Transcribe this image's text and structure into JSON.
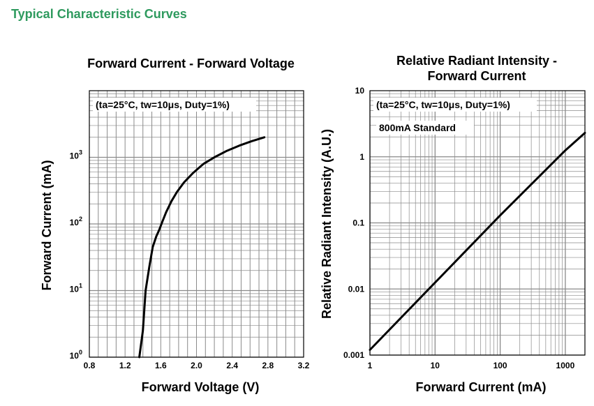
{
  "page": {
    "section_title": "Typical Characteristic Curves"
  },
  "chart_data": [
    {
      "type": "line",
      "title": "Forward Current - Forward Voltage",
      "xlabel": "Forward Voltage (V)",
      "ylabel": "Forward Current (mA)",
      "x_scale": "linear",
      "y_scale": "log",
      "xlim": [
        0.8,
        3.2
      ],
      "ylim": [
        1,
        10000
      ],
      "x_ticks": [
        "0.8",
        "1.2",
        "1.6",
        "2.0",
        "2.4",
        "2.8",
        "3.2"
      ],
      "y_ticks": [
        {
          "base": "10",
          "exp": "0"
        },
        {
          "base": "10",
          "exp": "1"
        },
        {
          "base": "10",
          "exp": "2"
        },
        {
          "base": "10",
          "exp": "3"
        }
      ],
      "grid": true,
      "annotation": "(ta=25°C, tw=10μs, Duty=1%)",
      "series": [
        {
          "x": [
            1.36,
            1.4,
            1.43,
            1.47,
            1.51,
            1.55,
            1.58,
            1.62,
            1.66,
            1.72,
            1.78,
            1.86,
            1.96,
            2.08,
            2.2,
            2.34,
            2.48,
            2.62,
            2.76
          ],
          "y": [
            1,
            2.5,
            10,
            22,
            45,
            65,
            80,
            110,
            150,
            220,
            300,
            420,
            580,
            800,
            1000,
            1250,
            1500,
            1750,
            2000
          ]
        }
      ]
    },
    {
      "type": "line",
      "title": [
        "Relative Radiant Intensity -",
        "Forward Current"
      ],
      "xlabel": "Forward Current (mA)",
      "ylabel": "Relative Radiant Intensity (A.U.)",
      "x_scale": "log",
      "y_scale": "log",
      "xlim": [
        1,
        2000
      ],
      "ylim": [
        0.001,
        10
      ],
      "x_ticks": [
        "1",
        "10",
        "100",
        "1000"
      ],
      "y_ticks": [
        "0.001",
        "0.01",
        "0.1",
        "1",
        "10"
      ],
      "grid": true,
      "annotations": [
        "(ta=25°C, tw=10μs, Duty=1%)",
        "800mA Standard"
      ],
      "series": [
        {
          "x": [
            1,
            10,
            100,
            1000,
            2000
          ],
          "y": [
            0.0012,
            0.0125,
            0.13,
            1.25,
            2.3
          ]
        }
      ]
    }
  ]
}
